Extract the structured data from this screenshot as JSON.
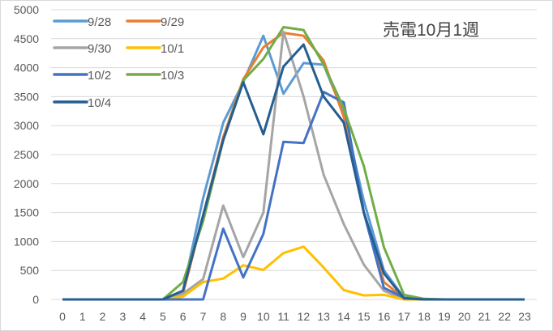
{
  "chart_data": {
    "type": "line",
    "title": "売電10月1週",
    "xlabel": "",
    "ylabel": "",
    "ylim": [
      0,
      5000
    ],
    "yticks": [
      0,
      500,
      1000,
      1500,
      2000,
      2500,
      3000,
      3500,
      4000,
      4500,
      5000
    ],
    "grid": true,
    "legend_position": "top-left inside",
    "x": [
      0,
      1,
      2,
      3,
      4,
      5,
      6,
      7,
      8,
      9,
      10,
      11,
      12,
      13,
      14,
      15,
      16,
      17,
      18,
      19,
      20,
      21,
      22,
      23
    ],
    "series": [
      {
        "name": "9/28",
        "color": "#5B9BD5",
        "values": [
          0,
          0,
          0,
          0,
          0,
          0,
          150,
          1750,
          3050,
          3750,
          4550,
          3550,
          4080,
          4050,
          3200,
          1700,
          500,
          30,
          0,
          0,
          0,
          0,
          0,
          0
        ]
      },
      {
        "name": "9/29",
        "color": "#ED7D31",
        "values": [
          0,
          0,
          0,
          0,
          0,
          0,
          100,
          1450,
          2800,
          3800,
          4350,
          4600,
          4550,
          4120,
          3150,
          1500,
          300,
          20,
          0,
          0,
          0,
          0,
          0,
          0
        ]
      },
      {
        "name": "9/30",
        "color": "#A5A5A5",
        "values": [
          0,
          0,
          0,
          0,
          0,
          0,
          100,
          350,
          1620,
          730,
          1500,
          4620,
          3500,
          2150,
          1300,
          600,
          150,
          0,
          0,
          0,
          0,
          0,
          0,
          0
        ]
      },
      {
        "name": "10/1",
        "color": "#FFC000",
        "values": [
          0,
          0,
          0,
          0,
          0,
          0,
          50,
          300,
          360,
          590,
          510,
          800,
          910,
          550,
          160,
          70,
          80,
          0,
          0,
          0,
          0,
          0,
          0,
          0
        ]
      },
      {
        "name": "10/2",
        "color": "#4472C4",
        "values": [
          0,
          0,
          0,
          0,
          0,
          0,
          0,
          0,
          1220,
          380,
          1130,
          2720,
          2700,
          3580,
          3400,
          1500,
          200,
          30,
          0,
          0,
          0,
          0,
          0,
          0
        ]
      },
      {
        "name": "10/3",
        "color": "#70AD47",
        "values": [
          0,
          0,
          0,
          0,
          0,
          0,
          300,
          1350,
          2750,
          3780,
          4150,
          4700,
          4650,
          4050,
          3300,
          2300,
          900,
          80,
          10,
          0,
          0,
          0,
          0,
          0
        ]
      },
      {
        "name": "10/4",
        "color": "#255E91",
        "values": [
          0,
          0,
          0,
          0,
          0,
          0,
          150,
          1450,
          2750,
          3750,
          2850,
          4020,
          4400,
          3500,
          3050,
          1500,
          450,
          20,
          0,
          0,
          0,
          0,
          0,
          0
        ]
      }
    ]
  },
  "legend": {
    "items": [
      "9/28",
      "9/29",
      "9/30",
      "10/1",
      "10/2",
      "10/3",
      "10/4"
    ]
  }
}
